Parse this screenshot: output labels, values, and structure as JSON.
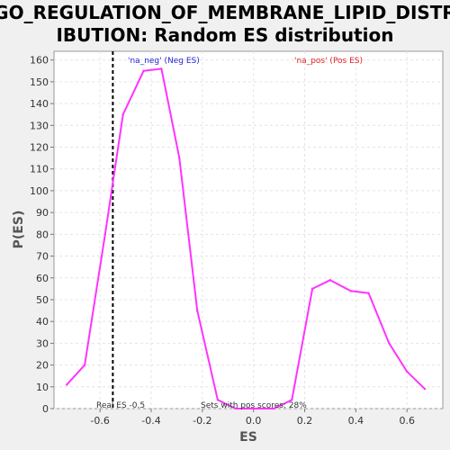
{
  "chart_data": {
    "type": "line",
    "title_line1": "GO_REGULATION_OF_MEMBRANE_LIPID_DISTR",
    "title_line2": "IBUTION: Random ES distribution",
    "xlabel": "ES",
    "ylabel": "P(ES)",
    "xlim": [
      -0.78,
      0.74
    ],
    "ylim": [
      0,
      164
    ],
    "x_ticks": [
      -0.6,
      -0.4,
      -0.2,
      0.0,
      0.2,
      0.4,
      0.6
    ],
    "x_tick_labels": [
      "-0.6",
      "-0.4",
      "-0.2",
      "0.0",
      "0.2",
      "0.4",
      "0.6"
    ],
    "y_ticks": [
      0,
      10,
      20,
      30,
      40,
      50,
      60,
      70,
      80,
      90,
      100,
      110,
      120,
      130,
      140,
      150,
      160
    ],
    "y_tick_labels": [
      "0",
      "10",
      "20",
      "30",
      "40",
      "50",
      "60",
      "70",
      "80",
      "90",
      "100",
      "110",
      "120",
      "130",
      "140",
      "150",
      "160"
    ],
    "grid": true,
    "series": [
      {
        "color": "#ff33ff",
        "x": [
          -0.73,
          -0.66,
          -0.58,
          -0.51,
          -0.43,
          -0.36,
          -0.29,
          -0.22,
          -0.14,
          -0.07,
          0.01,
          0.08,
          0.15,
          0.23,
          0.3,
          0.38,
          0.45,
          0.53,
          0.6,
          0.67
        ],
        "values": [
          11,
          20,
          80,
          135,
          155,
          156,
          115,
          45,
          4,
          0,
          0,
          0,
          4,
          55,
          59,
          54,
          53,
          30,
          17,
          9
        ]
      }
    ],
    "reference_line": {
      "x": -0.55,
      "color": "#000000",
      "style": "dashed"
    },
    "legend": [
      {
        "text": "'na_neg' (Neg ES)",
        "color": "#2323d8"
      },
      {
        "text": "'na_pos' (Pos ES)",
        "color": "#e02020"
      }
    ],
    "annotations": {
      "real_es": "Real ES -0.5",
      "pos_scores": "Sets with pos scores: 28%"
    }
  }
}
